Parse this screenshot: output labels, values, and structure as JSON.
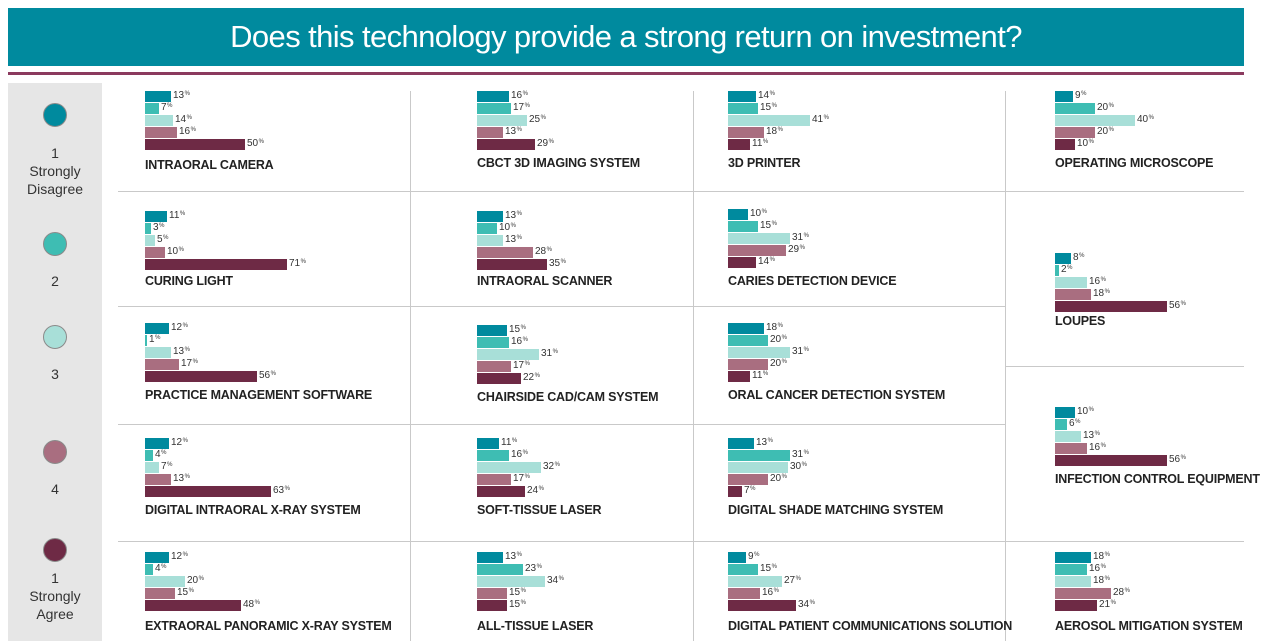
{
  "header": {
    "title": "Does this technology provide a strong return on investment?"
  },
  "colors": {
    "header_bg": "#008a9e",
    "rule": "#8b3a5e",
    "levels": [
      "#008a9e",
      "#3ebdb3",
      "#a8dfd8",
      "#a96e80",
      "#6e2a45"
    ]
  },
  "legend": [
    {
      "number": "1",
      "text": "Strongly\nDisagree"
    },
    {
      "number": "2",
      "text": ""
    },
    {
      "number": "3",
      "text": ""
    },
    {
      "number": "4",
      "text": ""
    },
    {
      "number": "1",
      "text": "Strongly\nAgree"
    }
  ],
  "chart_data": [
    {
      "type": "bar",
      "title": "INTRAORAL CAMERA",
      "values": [
        13,
        7,
        14,
        16,
        50
      ],
      "unit": "%"
    },
    {
      "type": "bar",
      "title": "CBCT 3D IMAGING SYSTEM",
      "values": [
        16,
        17,
        25,
        13,
        29
      ],
      "unit": "%"
    },
    {
      "type": "bar",
      "title": "3D PRINTER",
      "values": [
        14,
        15,
        41,
        18,
        11
      ],
      "unit": "%"
    },
    {
      "type": "bar",
      "title": "OPERATING MICROSCOPE",
      "values": [
        9,
        20,
        40,
        20,
        10
      ],
      "unit": "%"
    },
    {
      "type": "bar",
      "title": "CURING LIGHT",
      "values": [
        11,
        3,
        5,
        10,
        71
      ],
      "unit": "%"
    },
    {
      "type": "bar",
      "title": "INTRAORAL SCANNER",
      "values": [
        13,
        10,
        13,
        28,
        35
      ],
      "unit": "%"
    },
    {
      "type": "bar",
      "title": "CARIES DETECTION DEVICE",
      "values": [
        10,
        15,
        31,
        29,
        14
      ],
      "unit": "%"
    },
    {
      "type": "bar",
      "title": "LOUPES",
      "values": [
        8,
        2,
        16,
        18,
        56
      ],
      "unit": "%"
    },
    {
      "type": "bar",
      "title": "PRACTICE MANAGEMENT SOFTWARE",
      "values": [
        12,
        1,
        13,
        17,
        56
      ],
      "unit": "%"
    },
    {
      "type": "bar",
      "title": "CHAIRSIDE CAD/CAM SYSTEM",
      "values": [
        15,
        16,
        31,
        17,
        22
      ],
      "unit": "%"
    },
    {
      "type": "bar",
      "title": "ORAL CANCER DETECTION SYSTEM",
      "values": [
        18,
        20,
        31,
        20,
        11
      ],
      "unit": "%"
    },
    {
      "type": "bar",
      "title": "INFECTION CONTROL EQUIPMENT",
      "values": [
        10,
        6,
        13,
        16,
        56
      ],
      "unit": "%"
    },
    {
      "type": "bar",
      "title": "DIGITAL INTRAORAL X-RAY SYSTEM",
      "values": [
        12,
        4,
        7,
        13,
        63
      ],
      "unit": "%"
    },
    {
      "type": "bar",
      "title": "SOFT-TISSUE LASER",
      "values": [
        11,
        16,
        32,
        17,
        24
      ],
      "unit": "%"
    },
    {
      "type": "bar",
      "title": "DIGITAL SHADE MATCHING SYSTEM",
      "values": [
        13,
        31,
        30,
        20,
        7
      ],
      "unit": "%"
    },
    {
      "type": "bar",
      "title": "EXTRAORAL PANORAMIC X-RAY SYSTEM",
      "values": [
        12,
        4,
        20,
        15,
        48
      ],
      "unit": "%"
    },
    {
      "type": "bar",
      "title": "ALL-TISSUE LASER",
      "values": [
        13,
        23,
        34,
        15,
        15
      ],
      "unit": "%"
    },
    {
      "type": "bar",
      "title": "DIGITAL PATIENT COMMUNICATIONS SOLUTION",
      "values": [
        9,
        15,
        27,
        16,
        34
      ],
      "unit": "%"
    },
    {
      "type": "bar",
      "title": "AEROSOL MITIGATION SYSTEM",
      "values": [
        18,
        16,
        18,
        28,
        21
      ],
      "unit": "%"
    }
  ]
}
